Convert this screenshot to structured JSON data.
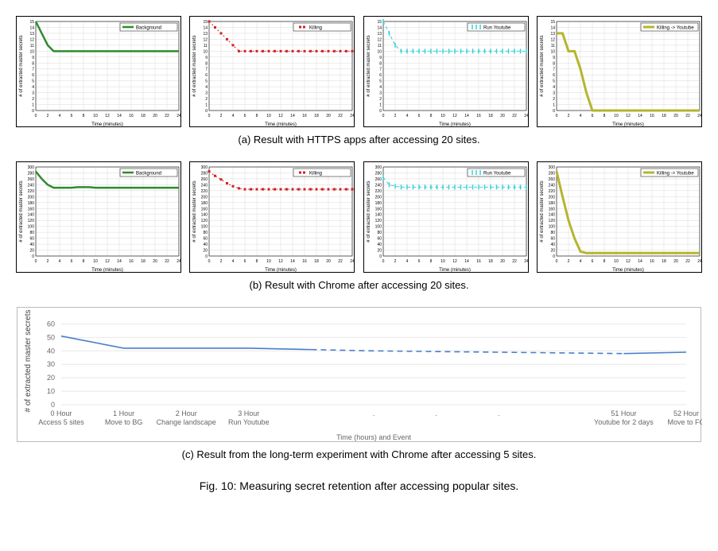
{
  "figure_title": "Fig. 10: Measuring secret retention after accessing popular sites.",
  "row_a": {
    "caption": "(a) Result with HTTPS apps after accessing 20 sites.",
    "ylabel": "# of extracted master secrets",
    "xlabel": "Time (minutes)",
    "ylim": [
      0,
      15
    ],
    "ytick_step": 1,
    "xlim": [
      0,
      24
    ],
    "xtick_step": 2,
    "label_fontsize": 6,
    "tick_fontsize": 5,
    "grid_color": "#d9d9d9",
    "panels": [
      {
        "legend": "Background",
        "color": "#2e8b2e",
        "style": "solid",
        "line_width": 2.5,
        "data_x": [
          0,
          1,
          2,
          3,
          4,
          5,
          6,
          7,
          8,
          9,
          10,
          11,
          12,
          13,
          14,
          15,
          16,
          17,
          18,
          19,
          20,
          21,
          22,
          23,
          24
        ],
        "data_y": [
          15,
          13,
          11,
          10,
          10,
          10,
          10,
          10,
          10,
          10,
          10,
          10,
          10,
          10,
          10,
          10,
          10,
          10,
          10,
          10,
          10,
          10,
          10,
          10,
          10
        ]
      },
      {
        "legend": "Killing",
        "color": "#d62020",
        "style": "dotted-markers",
        "marker": "square",
        "marker_size": 3,
        "data_x": [
          0,
          1,
          2,
          3,
          4,
          5,
          6,
          7,
          8,
          9,
          10,
          11,
          12,
          13,
          14,
          15,
          16,
          17,
          18,
          19,
          20,
          21,
          22,
          23,
          24
        ],
        "data_y": [
          15,
          14,
          13,
          12,
          11,
          10,
          10,
          10,
          10,
          10,
          10,
          10,
          10,
          10,
          10,
          10,
          10,
          10,
          10,
          10,
          10,
          10,
          10,
          10,
          10
        ]
      },
      {
        "legend": "Run Youtube",
        "color": "#35d0d8",
        "style": "dashed-markers",
        "marker": "vbar",
        "marker_size": 3,
        "data_x": [
          0,
          1,
          2,
          3,
          4,
          5,
          6,
          7,
          8,
          9,
          10,
          11,
          12,
          13,
          14,
          15,
          16,
          17,
          18,
          19,
          20,
          21,
          22,
          23,
          24
        ],
        "data_y": [
          15,
          13,
          11,
          10,
          10,
          10,
          10,
          10,
          10,
          10,
          10,
          10,
          10,
          10,
          10,
          10,
          10,
          10,
          10,
          10,
          10,
          10,
          10,
          10,
          10
        ]
      },
      {
        "legend": "Killing -> Youtube",
        "color": "#b5b52e",
        "style": "solid",
        "line_width": 3,
        "data_x": [
          0,
          1,
          2,
          3,
          4,
          5,
          6,
          7,
          8,
          9,
          10,
          11,
          12,
          13,
          14,
          15,
          16,
          17,
          18,
          19,
          20,
          21,
          22,
          23,
          24
        ],
        "data_y": [
          13,
          13,
          10,
          10,
          7,
          3,
          0,
          0,
          0,
          0,
          0,
          0,
          0,
          0,
          0,
          0,
          0,
          0,
          0,
          0,
          0,
          0,
          0,
          0,
          0
        ]
      }
    ]
  },
  "row_b": {
    "caption": "(b) Result with Chrome after accessing 20 sites.",
    "ylabel": "# of extracted master secrets",
    "xlabel": "Time (minutes)",
    "ylim": [
      0,
      300
    ],
    "ytick_step": 20,
    "xlim": [
      0,
      24
    ],
    "xtick_step": 2,
    "label_fontsize": 6,
    "tick_fontsize": 5,
    "grid_color": "#d9d9d9",
    "panels": [
      {
        "legend": "Background",
        "color": "#2e8b2e",
        "style": "solid",
        "line_width": 2.5,
        "data_x": [
          0,
          1,
          2,
          3,
          4,
          5,
          6,
          7,
          8,
          9,
          10,
          11,
          12,
          13,
          14,
          15,
          16,
          17,
          18,
          19,
          20,
          21,
          22,
          23,
          24
        ],
        "data_y": [
          285,
          260,
          240,
          230,
          230,
          230,
          230,
          232,
          232,
          232,
          230,
          230,
          230,
          230,
          230,
          230,
          230,
          230,
          230,
          230,
          230,
          230,
          230,
          230,
          230
        ]
      },
      {
        "legend": "Killing",
        "color": "#d62020",
        "style": "dotted-markers",
        "marker": "square",
        "marker_size": 3,
        "data_x": [
          0,
          1,
          2,
          3,
          4,
          5,
          6,
          7,
          8,
          9,
          10,
          11,
          12,
          13,
          14,
          15,
          16,
          17,
          18,
          19,
          20,
          21,
          22,
          23,
          24
        ],
        "data_y": [
          285,
          270,
          258,
          245,
          235,
          228,
          225,
          225,
          225,
          225,
          225,
          225,
          225,
          225,
          225,
          225,
          225,
          225,
          225,
          225,
          225,
          225,
          225,
          225,
          225
        ]
      },
      {
        "legend": "Run Youtube",
        "color": "#35d0d8",
        "style": "dashed-markers",
        "marker": "vbar",
        "marker_size": 3,
        "data_x": [
          0,
          1,
          2,
          3,
          4,
          5,
          6,
          7,
          8,
          9,
          10,
          11,
          12,
          13,
          14,
          15,
          16,
          17,
          18,
          19,
          20,
          21,
          22,
          23,
          24
        ],
        "data_y": [
          265,
          240,
          235,
          232,
          232,
          232,
          232,
          232,
          232,
          232,
          232,
          232,
          232,
          232,
          232,
          232,
          232,
          232,
          232,
          232,
          232,
          232,
          232,
          232,
          232
        ]
      },
      {
        "legend": "Killing -> Youtube",
        "color": "#b5b52e",
        "style": "solid",
        "line_width": 3,
        "data_x": [
          0,
          1,
          2,
          3,
          4,
          5,
          6,
          7,
          8,
          9,
          10,
          11,
          12,
          13,
          14,
          15,
          16,
          17,
          18,
          19,
          20,
          21,
          22,
          23,
          24
        ],
        "data_y": [
          285,
          200,
          120,
          60,
          15,
          10,
          10,
          10,
          10,
          10,
          10,
          10,
          10,
          10,
          10,
          10,
          10,
          10,
          10,
          10,
          10,
          10,
          10,
          10,
          10
        ]
      }
    ]
  },
  "row_c": {
    "caption": "(c) Result from the long-term experiment with Chrome after accessing 5 sites.",
    "ylabel": "# of extracted master secrets",
    "xlabel": "Time (hours) and Event",
    "ylim": [
      0,
      65
    ],
    "yticks": [
      0,
      10,
      20,
      30,
      40,
      50,
      60
    ],
    "x_categories": [
      "0 Hour\nAccess 5 sites",
      "1 Hour\nMove to BG",
      "2 Hour\nChange landscape",
      "3 Hour\nRun Youtube",
      ".",
      ".",
      ".",
      "51 Hour\nYoutube for 2 days",
      "52 Hour\nMove to FG"
    ],
    "label_fontsize": 10,
    "tick_fontsize": 9,
    "grid_color": "#e8e8e8",
    "line_color": "#4a7fc9",
    "line_width": 1.6,
    "data_y_solid1": [
      51,
      42,
      42,
      42,
      41
    ],
    "data_y_dashed": [
      41,
      40,
      39.5,
      39,
      38.5,
      38
    ],
    "data_y_solid2": [
      38,
      39
    ],
    "segment1_x": [
      0,
      1,
      2,
      3,
      4
    ],
    "dashed_x": [
      4,
      5,
      6,
      7,
      8,
      9
    ],
    "segment2_x": [
      9,
      10
    ]
  }
}
